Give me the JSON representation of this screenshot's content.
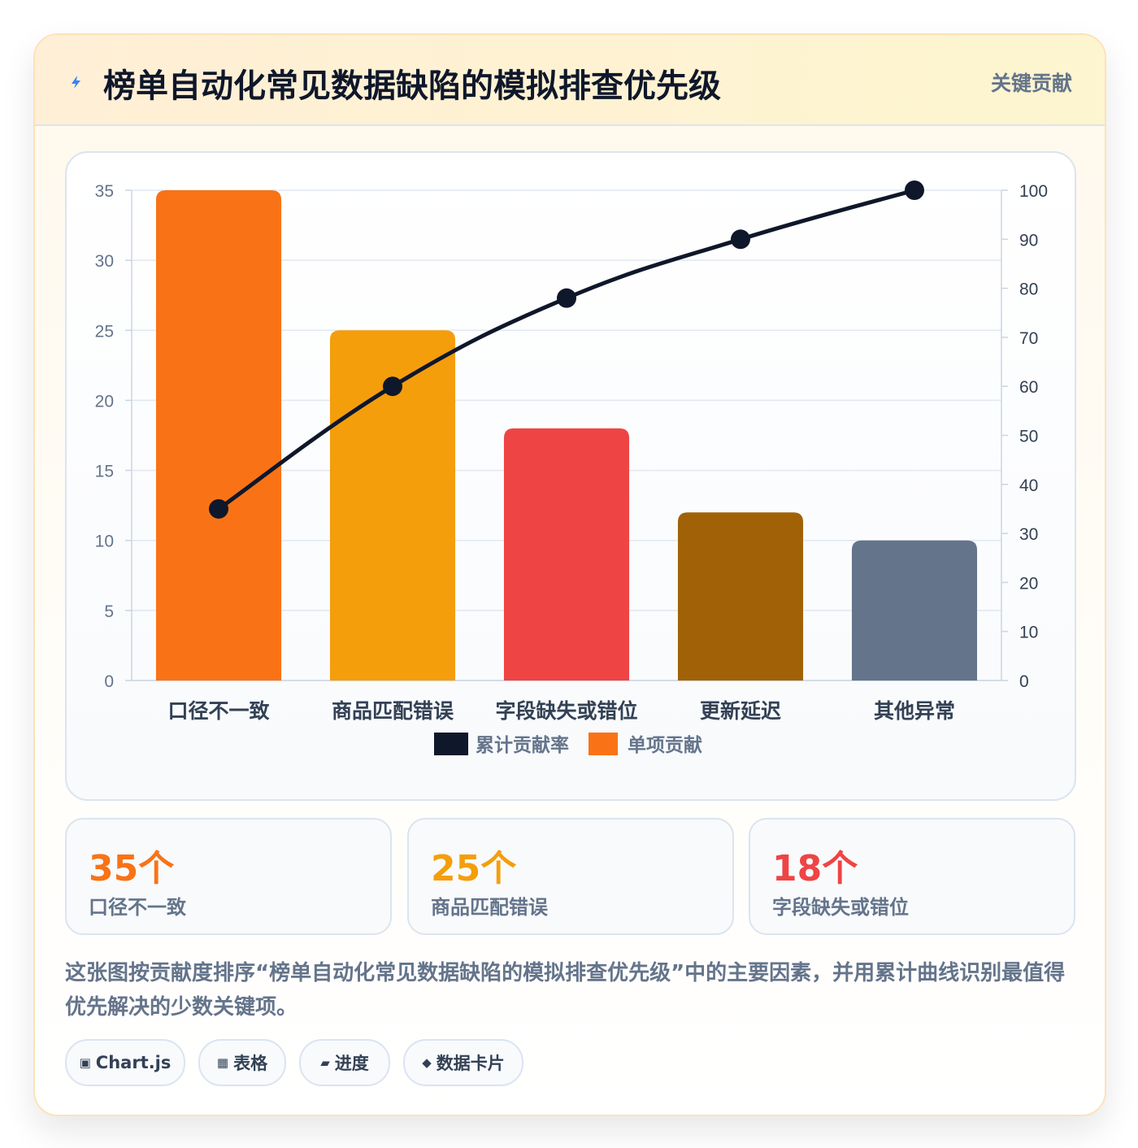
{
  "header": {
    "title": "榜单自动化常见数据缺陷的模拟排查优先级",
    "tag": "关键贡献",
    "icon": "lightning-icon"
  },
  "chart_data": {
    "type": "bar",
    "categories": [
      "口径不一致",
      "商品匹配错误",
      "字段缺失或错位",
      "更新延迟",
      "其他异常"
    ],
    "series": [
      {
        "name": "单项贡献",
        "kind": "bar",
        "axis": "left",
        "values": [
          35,
          25,
          18,
          12,
          10
        ],
        "colors": [
          "#f97316",
          "#f59e0b",
          "#ef4444",
          "#a16207",
          "#64748b"
        ]
      },
      {
        "name": "累计贡献率",
        "kind": "line",
        "axis": "right",
        "values": [
          35,
          60,
          78,
          90,
          100
        ],
        "color": "#0f172a"
      }
    ],
    "y_left": {
      "min": 0,
      "max": 35,
      "ticks": [
        "0",
        "5",
        "10",
        "15",
        "20",
        "25",
        "30",
        "35"
      ]
    },
    "y_right": {
      "min": 0,
      "max": 100,
      "ticks": [
        "0",
        "10",
        "20",
        "30",
        "40",
        "50",
        "60",
        "70",
        "80",
        "90",
        "100"
      ]
    },
    "legend": {
      "position": "bottom",
      "items": [
        "累计贡献率",
        "单项贡献"
      ]
    },
    "grid": true
  },
  "stats": [
    {
      "value": "35个",
      "label": "口径不一致",
      "color": "#f97316"
    },
    {
      "value": "25个",
      "label": "商品匹配错误",
      "color": "#f59e0b"
    },
    {
      "value": "18个",
      "label": "字段缺失或错位",
      "color": "#ef4444"
    }
  ],
  "description": "这张图按贡献度排序“榜单自动化常见数据缺陷的模拟排查优先级”中的主要因素，并用累计曲线识别最值得优先解决的少数关键项。",
  "chips": [
    {
      "icon": "▣",
      "label": "Chart.js"
    },
    {
      "icon": "▦",
      "label": "表格"
    },
    {
      "icon": "▰",
      "label": "进度"
    },
    {
      "icon": "◆",
      "label": "数据卡片"
    }
  ]
}
